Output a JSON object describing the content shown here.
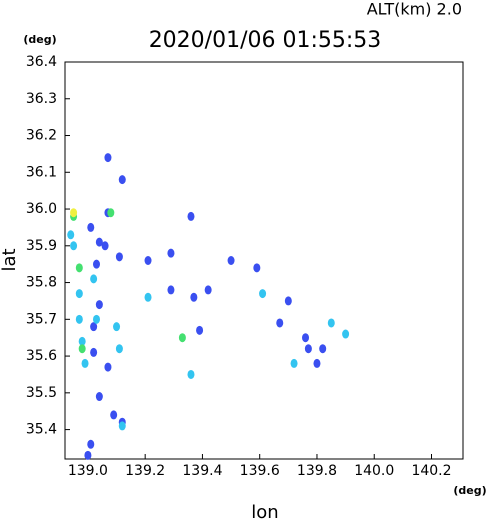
{
  "chart_data": {
    "type": "scatter",
    "title": "2020/01/06 01:55:53",
    "subtitle": "ALT(km) 2.0",
    "x_label": "lon",
    "y_label": "lat",
    "x_unit": "(deg)",
    "y_unit": "(deg)",
    "xlim": [
      138.92,
      140.31
    ],
    "ylim": [
      35.32,
      36.4
    ],
    "xticks": [
      {
        "value": 139,
        "label": "139.0"
      },
      139.2,
      139.4,
      139.6,
      139.8,
      {
        "value": 140,
        "label": "140.0"
      },
      140.2
    ],
    "yticks": [
      35.4,
      35.5,
      35.6,
      35.7,
      35.8,
      35.9,
      {
        "value": 36,
        "label": "36.0"
      },
      36.1,
      36.2,
      36.3,
      36.4
    ],
    "series": [
      {
        "color": "#3a4ff0",
        "x": [
          139.07,
          139.12,
          139.07,
          139.01,
          139.06,
          139.11,
          139.03,
          139.29,
          139.36,
          139.5,
          139.59,
          139.29,
          139.37,
          139.42,
          139.04,
          139.02,
          139.39,
          139.67,
          139.7,
          139.76,
          139.77,
          139.82,
          139.8,
          139.02,
          139.07,
          139.04,
          139.09,
          139.12,
          139.01,
          139.0,
          139.04,
          139.21
        ],
        "y": [
          36.14,
          36.08,
          35.99,
          35.95,
          35.9,
          35.87,
          35.85,
          35.88,
          35.98,
          35.86,
          35.84,
          35.78,
          35.76,
          35.78,
          35.74,
          35.68,
          35.67,
          35.69,
          35.75,
          35.65,
          35.62,
          35.62,
          35.58,
          35.61,
          35.57,
          35.49,
          35.44,
          35.42,
          35.36,
          35.33,
          35.91,
          35.86
        ]
      },
      {
        "color": "#33c4f0",
        "x": [
          138.94,
          138.95,
          139.02,
          138.97,
          139.03,
          139.1,
          138.98,
          139.11,
          139.21,
          139.36,
          139.61,
          139.72,
          139.85,
          139.9,
          139.12,
          138.97,
          138.99
        ],
        "y": [
          35.93,
          35.9,
          35.81,
          35.77,
          35.7,
          35.68,
          35.64,
          35.62,
          35.76,
          35.55,
          35.77,
          35.58,
          35.69,
          35.66,
          35.41,
          35.7,
          35.58
        ]
      },
      {
        "color": "#44e070",
        "x": [
          138.97,
          138.95,
          139.33,
          138.98,
          139.08
        ],
        "y": [
          35.84,
          35.98,
          35.65,
          35.62,
          35.99
        ]
      },
      {
        "color": "#f0f040",
        "x": [
          138.95
        ],
        "y": [
          35.99
        ]
      }
    ]
  }
}
